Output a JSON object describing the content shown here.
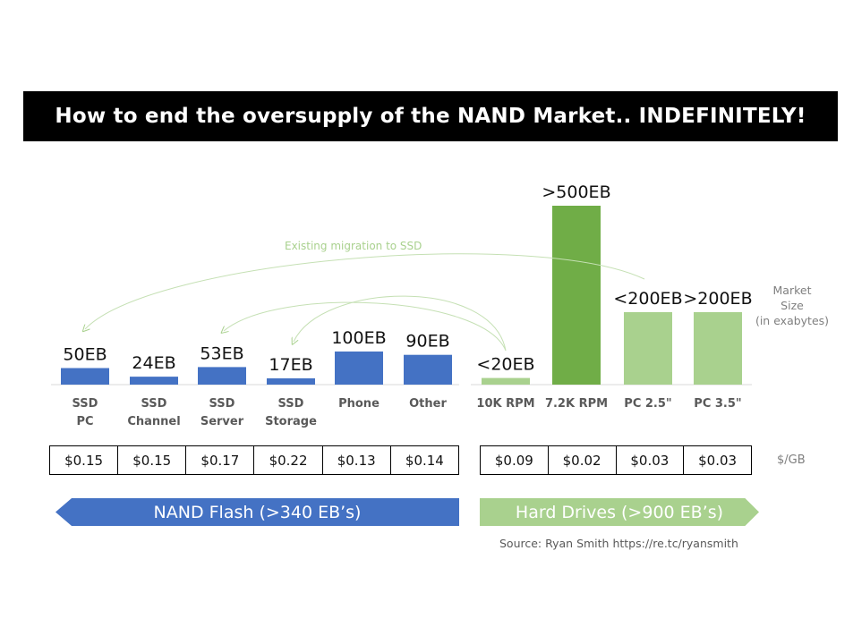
{
  "title": "How to end the oversupply of the NAND Market.. INDEFINITELY!",
  "migration_label": "Existing migration to SSD",
  "market_size_label": [
    "Market",
    "Size",
    "(in exabytes)"
  ],
  "per_gb_label": "$/GB",
  "nand_banner": "NAND Flash (>340 EB’s)",
  "hdd_banner": "Hard Drives (>900 EB’s)",
  "source": "Source: Ryan Smith   https://re.tc/ryansmith",
  "colors": {
    "nand": "#4472c4",
    "hdd_light": "#a9d18e",
    "hdd_dark": "#70ad47"
  },
  "chart_data": {
    "type": "bar",
    "categories": [
      [
        "SSD",
        "PC"
      ],
      [
        "SSD",
        "Channel"
      ],
      [
        "SSD",
        "Server"
      ],
      [
        "SSD",
        "Storage"
      ],
      [
        "Phone"
      ],
      [
        "Other"
      ],
      [
        "10K RPM"
      ],
      [
        "7.2K RPM"
      ],
      [
        "PC 2.5\""
      ],
      [
        "PC 3.5\""
      ]
    ],
    "values": [
      50,
      24,
      53,
      17,
      100,
      90,
      20,
      500,
      200,
      200
    ],
    "data_labels": [
      "50EB",
      "24EB",
      "53EB",
      "17EB",
      "100EB",
      "90EB",
      "<20EB",
      ">500EB",
      "<200EB",
      ">200EB"
    ],
    "groups": [
      "nand",
      "nand",
      "nand",
      "nand",
      "nand",
      "nand",
      "hdd",
      "hdd",
      "hdd",
      "hdd"
    ],
    "price_per_gb": [
      "$0.15",
      "$0.15",
      "$0.17",
      "$0.22",
      "$0.13",
      "$0.14",
      "$0.09",
      "$0.02",
      "$0.03",
      "$0.03"
    ],
    "unit": "EB"
  }
}
